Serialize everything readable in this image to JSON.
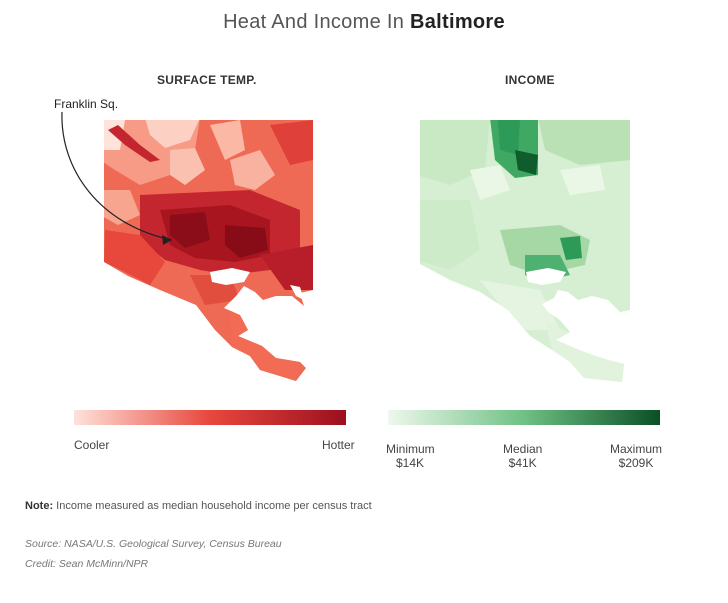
{
  "title": {
    "prefix": "Heat And Income In ",
    "city": "Baltimore"
  },
  "panels": {
    "temp": {
      "title": "SURFACE TEMP.",
      "annotation": "Franklin Sq.",
      "legend": {
        "low": "Cooler",
        "high": "Hotter",
        "colors": [
          "#fde3da",
          "#e8473c",
          "#9c0f1f"
        ]
      }
    },
    "income": {
      "title": "INCOME",
      "legend": {
        "min_label": "Minimum",
        "min_value": "$14K",
        "median_label": "Median",
        "median_value": "$41K",
        "max_label": "Maximum",
        "max_value": "$209K",
        "colors": [
          "#eef8ec",
          "#6fc184",
          "#0a4f26"
        ]
      }
    }
  },
  "note": {
    "label": "Note:",
    "text": " Income measured as median household income per census tract"
  },
  "source": "Source: NASA/U.S. Geological Survey, Census Bureau",
  "credit": "Credit: Sean McMinn/NPR"
}
